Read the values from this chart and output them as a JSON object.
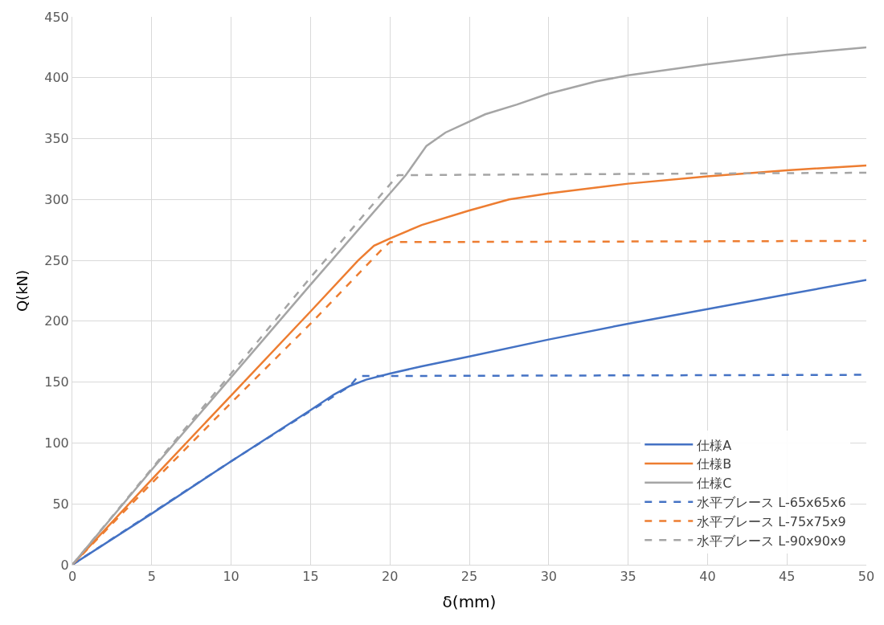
{
  "chart_data": {
    "type": "line",
    "xlabel": "δ(mm)",
    "ylabel": "Q(kN)",
    "xlim": [
      0,
      50
    ],
    "ylim": [
      0,
      450
    ],
    "xticks": [
      0,
      5,
      10,
      15,
      20,
      25,
      30,
      35,
      40,
      45,
      50
    ],
    "yticks": [
      0,
      50,
      100,
      150,
      200,
      250,
      300,
      350,
      400,
      450
    ],
    "grid": true,
    "legend": "bottom right",
    "marker": "none",
    "series": [
      {
        "name": "仕様A",
        "color": "#4472c4",
        "line_style": "solid",
        "x": [
          0,
          5,
          10,
          15,
          16.5,
          17.5,
          18.5,
          20,
          22,
          25,
          30,
          35,
          40,
          45,
          50
        ],
        "values": [
          0,
          42,
          85,
          127,
          140,
          147,
          152,
          157,
          163,
          171,
          185,
          198,
          210,
          222,
          234
        ]
      },
      {
        "name": "仕様B",
        "color": "#ed7d31",
        "line_style": "solid",
        "x": [
          0,
          5,
          10,
          15,
          18,
          19,
          20,
          22,
          25,
          27.5,
          30,
          35,
          40,
          45,
          50
        ],
        "values": [
          0,
          70,
          139,
          208,
          250,
          262,
          268,
          279,
          291,
          300,
          305,
          313,
          319,
          324,
          328
        ]
      },
      {
        "name": "仕様C",
        "color": "#a5a5a5",
        "line_style": "solid",
        "x": [
          0,
          5,
          10,
          15,
          20,
          21,
          22.3,
          23.5,
          26,
          28,
          30,
          33,
          35,
          40,
          45,
          50
        ],
        "values": [
          0,
          78,
          154,
          230,
          305,
          320,
          344,
          355,
          370,
          378,
          387,
          397,
          402,
          411,
          419,
          425
        ]
      },
      {
        "name": "水平ブレース L-65x65x6",
        "color": "#4472c4",
        "line_style": "dashed",
        "x": [
          0,
          10,
          17.5,
          18,
          50
        ],
        "values": [
          0,
          85,
          147,
          155,
          156
        ]
      },
      {
        "name": "水平ブレース L-75x75x9",
        "color": "#ed7d31",
        "line_style": "dashed",
        "x": [
          0,
          5,
          10,
          15,
          19.5,
          20,
          50
        ],
        "values": [
          0,
          67,
          133,
          198,
          259,
          265,
          266
        ]
      },
      {
        "name": "水平ブレース L-90x90x9",
        "color": "#a5a5a5",
        "line_style": "dashed",
        "x": [
          0,
          5,
          10,
          15,
          20.5,
          50
        ],
        "values": [
          0,
          79,
          157,
          236,
          320,
          322
        ]
      }
    ]
  }
}
